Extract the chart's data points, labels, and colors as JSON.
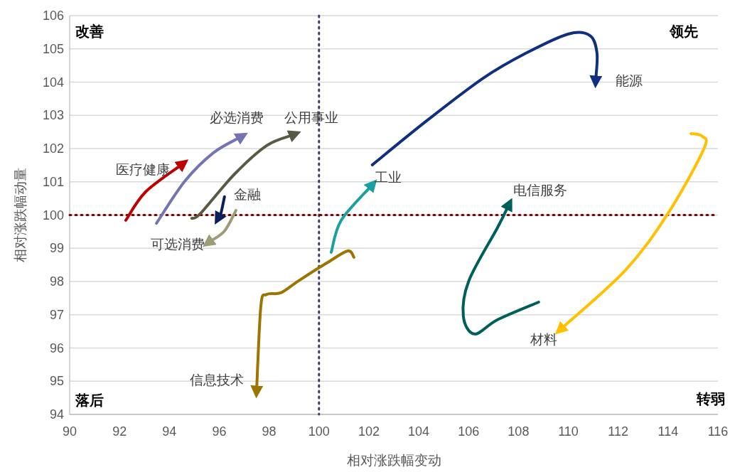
{
  "chart_data": {
    "type": "line",
    "xlabel": "相对涨跌幅变动",
    "ylabel": "相对涨跌幅动量",
    "xlim": [
      90,
      116
    ],
    "xticks": [
      90,
      92,
      94,
      96,
      98,
      100,
      102,
      104,
      106,
      108,
      110,
      112,
      114,
      116
    ],
    "ylim": [
      94,
      106
    ],
    "yticks": [
      94,
      95,
      96,
      97,
      98,
      99,
      100,
      101,
      102,
      103,
      104,
      105,
      106
    ],
    "grid": "y",
    "series": [
      {
        "name": "医疗健康",
        "color": "#c00000",
        "x": [
          92.25,
          93.05,
          94.48
        ],
        "values": [
          99.84,
          100.7,
          101.51
        ]
      },
      {
        "name": "可选消费",
        "color": "#9c9c78",
        "x": [
          96.67,
          96.21,
          95.62
        ],
        "values": [
          100.14,
          99.52,
          99.2
        ]
      },
      {
        "name": "必选消费",
        "color": "#7474b0",
        "x": [
          93.48,
          94.62,
          95.76,
          96.84
        ],
        "values": [
          99.75,
          101.02,
          101.87,
          102.34
        ]
      },
      {
        "name": "公用事业",
        "color": "#595a44",
        "x": [
          94.9,
          95.25,
          96.61,
          97.9,
          98.95
        ],
        "values": [
          99.9,
          100.05,
          101.23,
          102.09,
          102.41
        ]
      },
      {
        "name": "金融",
        "color": "#0b1f5a",
        "x": [
          96.21,
          96.07,
          95.99
        ],
        "values": [
          100.55,
          100.06,
          99.95
        ]
      },
      {
        "name": "工业",
        "color": "#1aa0a0",
        "x": [
          100.49,
          100.89,
          102.09
        ],
        "values": [
          98.88,
          99.84,
          100.87
        ]
      },
      {
        "name": "信息技术",
        "color": "#9c7400",
        "x": [
          101.4,
          101.15,
          100.32,
          99.18,
          98.47,
          97.9,
          97.67,
          97.5
        ],
        "values": [
          98.73,
          98.92,
          98.56,
          98.02,
          97.66,
          97.61,
          97.27,
          94.75
        ]
      },
      {
        "name": "能源",
        "color": "#0f2f7f",
        "x": [
          102.14,
          104.31,
          106.59,
          108.3,
          110.01,
          110.87,
          111.15,
          111.1
        ],
        "values": [
          101.51,
          102.83,
          104.12,
          104.87,
          105.45,
          105.4,
          104.87,
          104.08
        ]
      },
      {
        "name": "电信服务",
        "color": "#005f5a",
        "x": [
          108.81,
          107.16,
          106.24,
          105.79,
          106.01,
          107.16,
          107.59
        ],
        "values": [
          97.38,
          96.85,
          96.42,
          96.95,
          98.02,
          99.62,
          100.27
        ]
      },
      {
        "name": "材料",
        "color": "#ffc000",
        "x": [
          114.92,
          115.37,
          115.43,
          114.0,
          112.29,
          109.73
        ],
        "values": [
          102.45,
          102.37,
          101.98,
          100.05,
          98.34,
          96.59
        ]
      }
    ],
    "ref_lines": [
      {
        "axis": "x",
        "value": 100,
        "color": "#3c3c6e",
        "line_style": "dotted"
      },
      {
        "axis": "y",
        "value": 100,
        "color": "#7b0000",
        "line_style": "dotted"
      }
    ],
    "annotations": [
      "改善",
      "领先",
      "落后",
      "转弱"
    ]
  }
}
